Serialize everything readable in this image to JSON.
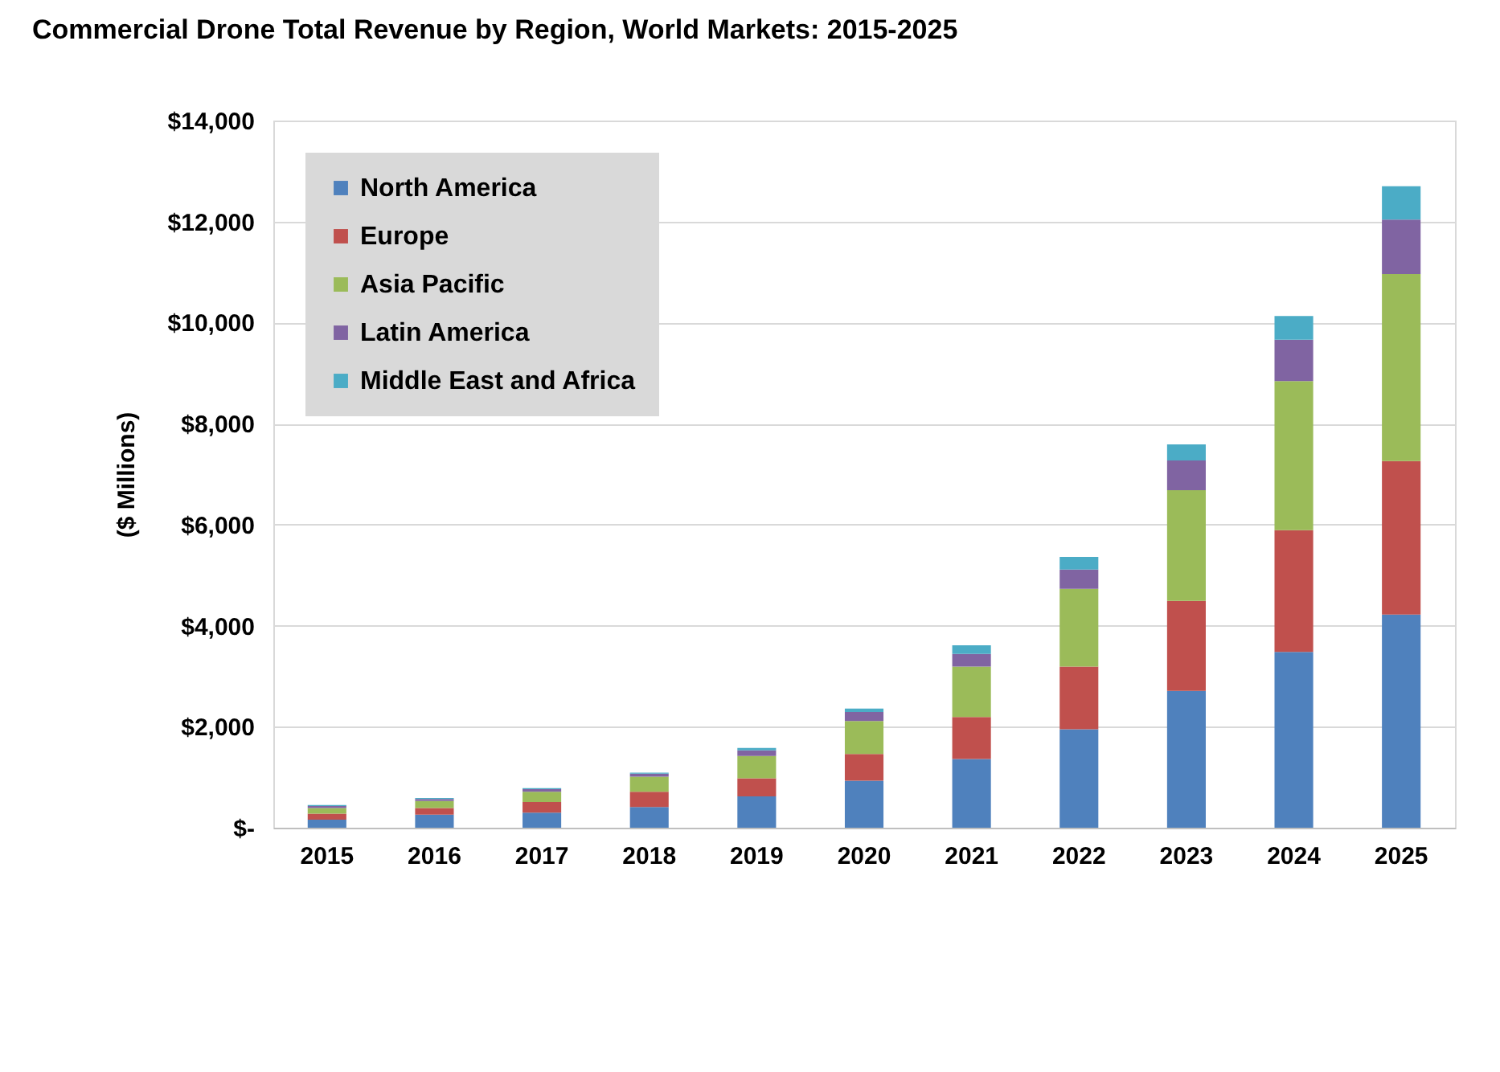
{
  "chart_data": {
    "type": "bar",
    "title": "Commercial Drone Total Revenue by Region, World Markets: 2015-2025",
    "ylabel": "($ Millions)",
    "categories": [
      "2015",
      "2016",
      "2017",
      "2018",
      "2019",
      "2020",
      "2021",
      "2022",
      "2023",
      "2024",
      "2025"
    ],
    "stacked": true,
    "legend": "top left",
    "grid": "y",
    "ylim": [
      0,
      14000
    ],
    "yticks": [
      {
        "value": 0,
        "label": "$-"
      },
      {
        "value": 2000,
        "label": "$2,000"
      },
      {
        "value": 4000,
        "label": "$4,000"
      },
      {
        "value": 6000,
        "label": "$6,000"
      },
      {
        "value": 8000,
        "label": "$8,000"
      },
      {
        "value": 10000,
        "label": "$10,000"
      },
      {
        "value": 12000,
        "label": "$12,000"
      },
      {
        "value": 14000,
        "label": "$14,000"
      }
    ],
    "series": [
      {
        "name": "North America",
        "color": "#4f81bd",
        "values": [
          160,
          260,
          300,
          410,
          620,
          930,
          1360,
          1950,
          2710,
          3480,
          4220
        ]
      },
      {
        "name": "Europe",
        "color": "#c0504d",
        "values": [
          120,
          130,
          210,
          300,
          360,
          530,
          830,
          1240,
          1780,
          2410,
          3040
        ]
      },
      {
        "name": "Asia Pacific",
        "color": "#9bbb59",
        "values": [
          110,
          140,
          200,
          300,
          440,
          650,
          1000,
          1540,
          2190,
          2950,
          3700
        ]
      },
      {
        "name": "Latin America",
        "color": "#8064a2",
        "values": [
          40,
          40,
          55,
          60,
          110,
          180,
          250,
          380,
          590,
          820,
          1080
        ]
      },
      {
        "name": "Middle East and Africa",
        "color": "#4bacc6",
        "values": [
          20,
          20,
          20,
          20,
          50,
          70,
          170,
          250,
          320,
          470,
          660
        ]
      }
    ]
  }
}
